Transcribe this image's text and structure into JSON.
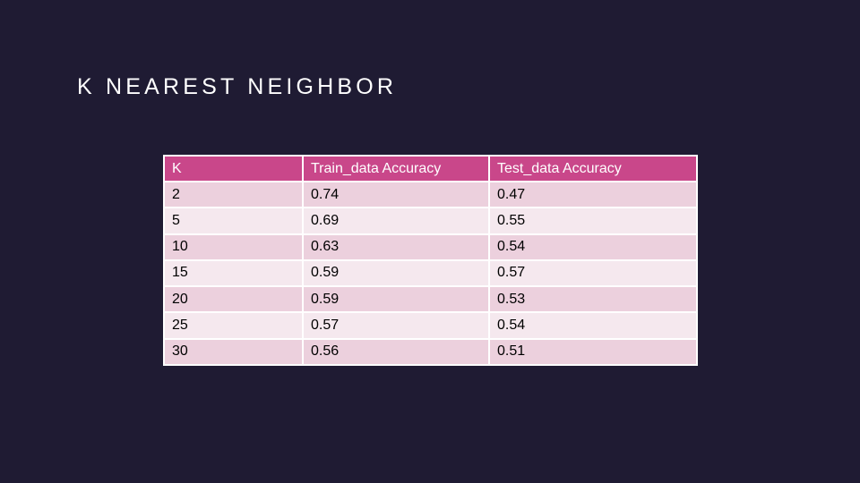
{
  "slide": {
    "title": "K NEAREST NEIGHBOR"
  },
  "colors": {
    "background": "#1f1b33",
    "header": "#c9478a",
    "row_odd": "#ecd0dd",
    "row_even": "#f5e8ee",
    "title_text": "#ffffff"
  },
  "table": {
    "headers": [
      "K",
      "Train_data Accuracy",
      "Test_data Accuracy"
    ],
    "rows": [
      [
        "2",
        "0.74",
        "0.47"
      ],
      [
        "5",
        "0.69",
        "0.55"
      ],
      [
        "10",
        "0.63",
        "0.54"
      ],
      [
        "15",
        "0.59",
        "0.57"
      ],
      [
        "20",
        "0.59",
        "0.53"
      ],
      [
        "25",
        "0.57",
        "0.54"
      ],
      [
        "30",
        "0.56",
        "0.51"
      ]
    ]
  }
}
